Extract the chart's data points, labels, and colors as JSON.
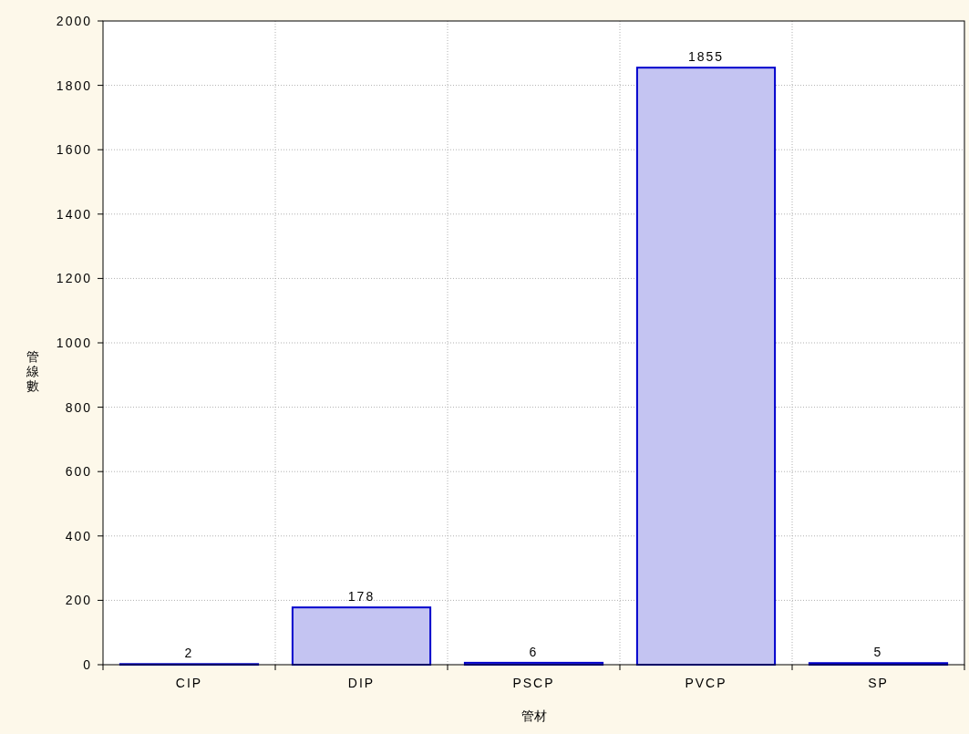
{
  "chart_data": {
    "type": "bar",
    "xlabel": "管材",
    "ylabel": "管線數",
    "categories": [
      "CIP",
      "DIP",
      "PSCP",
      "PVCP",
      "SP"
    ],
    "values": [
      2,
      178,
      6,
      1855,
      5
    ],
    "color": "#c4c4f2",
    "ylim": [
      0,
      2000
    ],
    "yticks": [
      0,
      200,
      400,
      600,
      800,
      1000,
      1200,
      1400,
      1600,
      1800,
      2000
    ],
    "grid": true,
    "data_labels": true
  }
}
